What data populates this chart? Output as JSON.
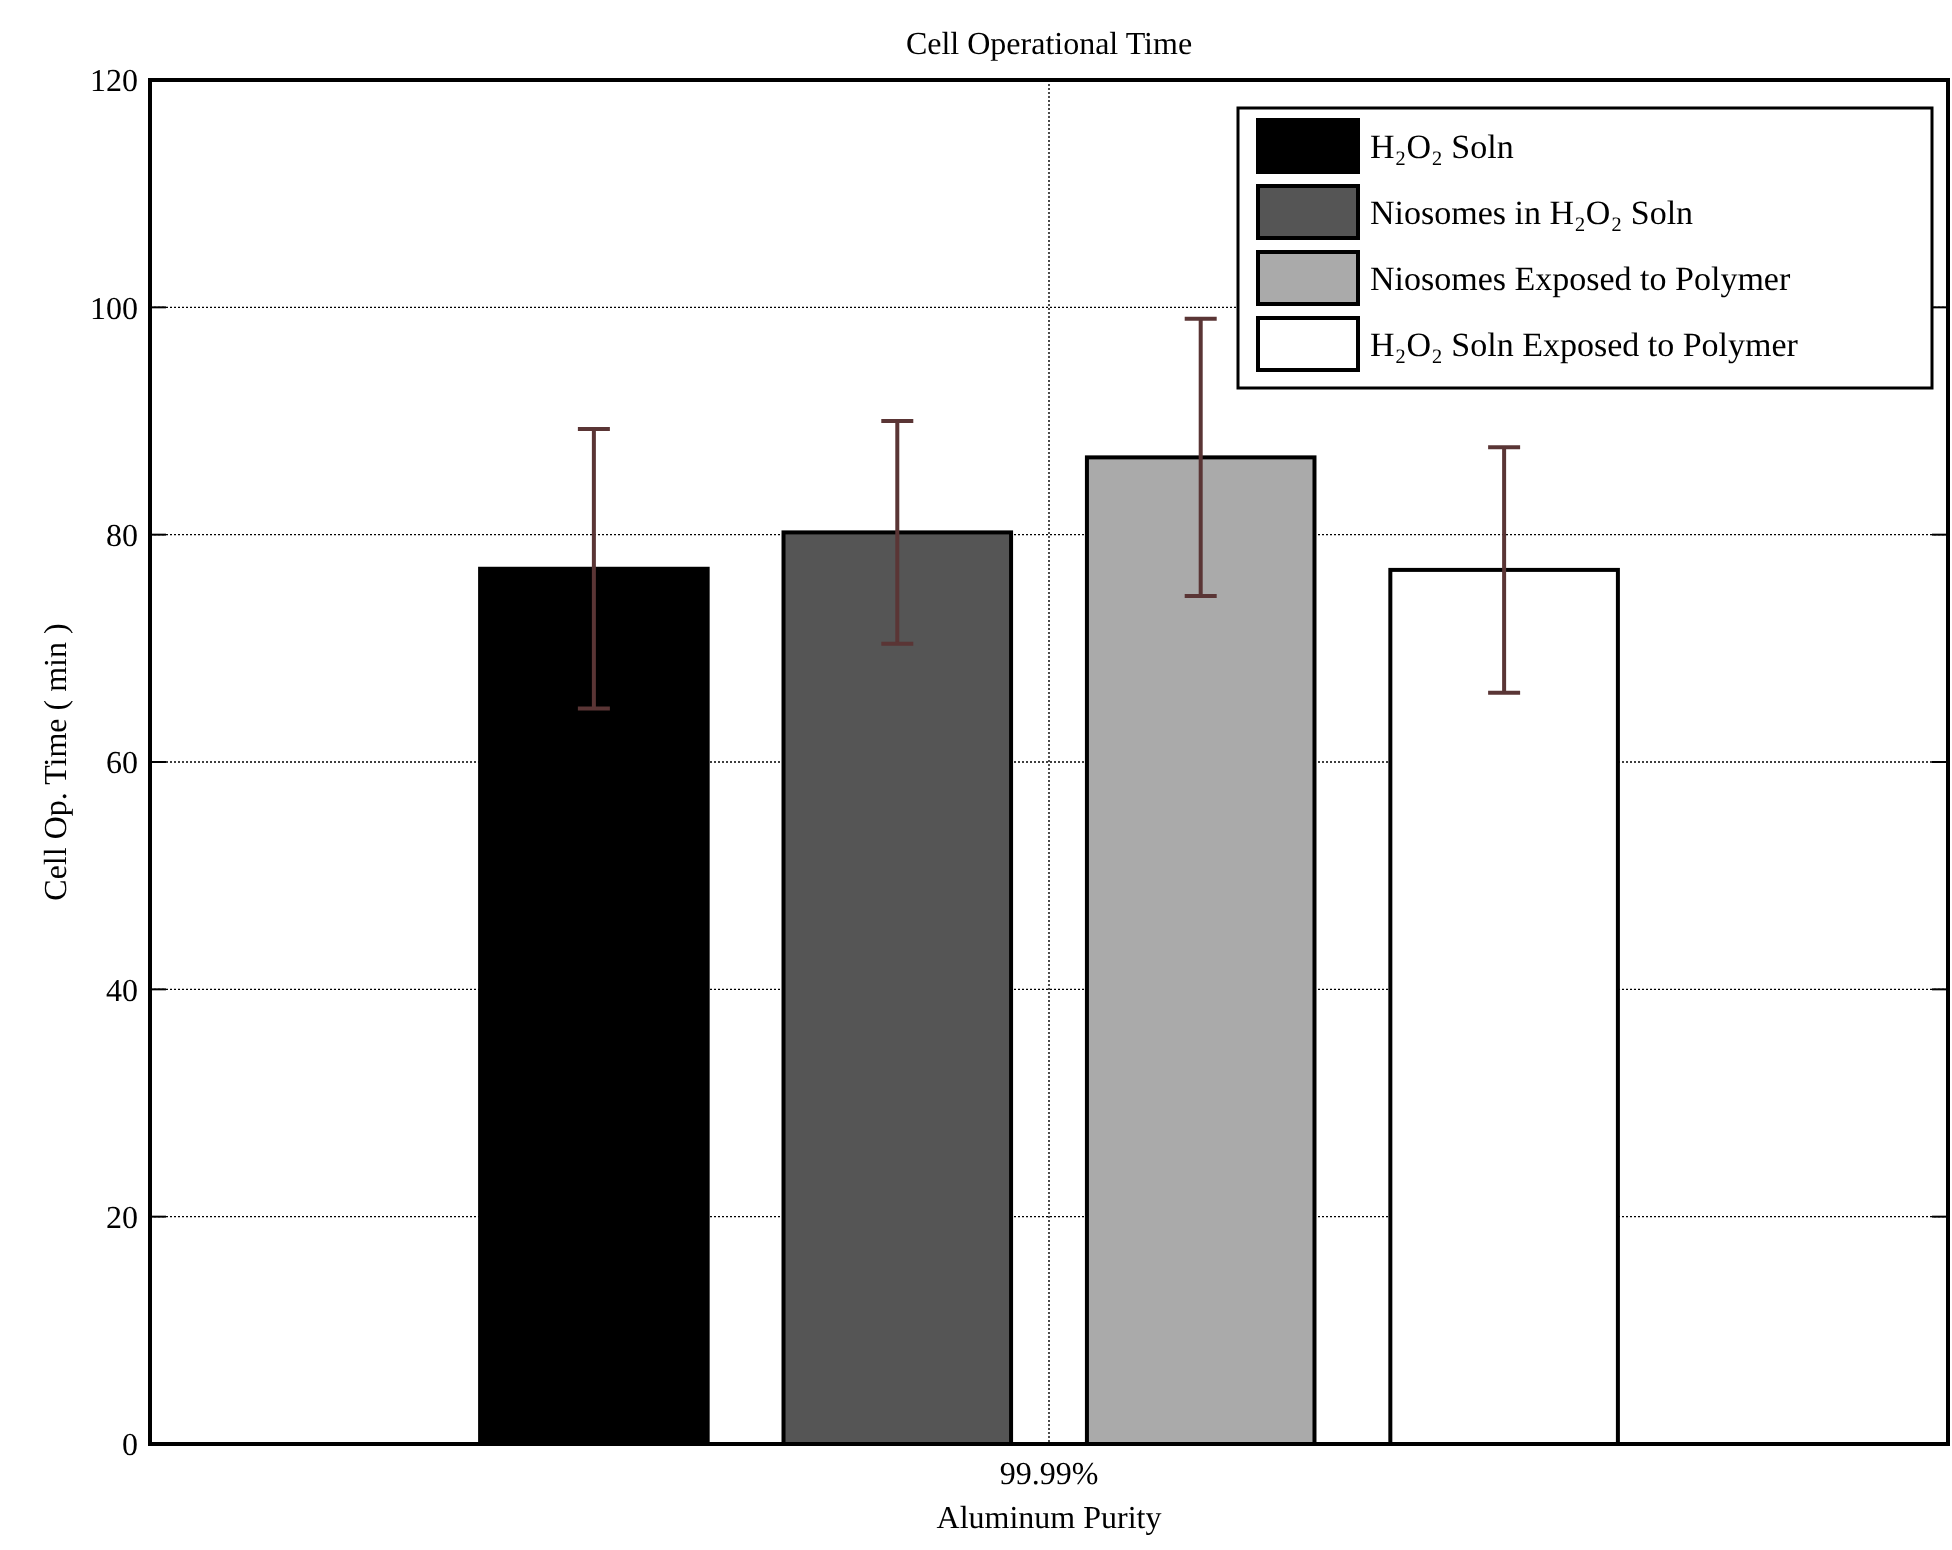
{
  "chart_data": {
    "type": "bar",
    "title": "Cell Operational Time",
    "xlabel": "Aluminum Purity",
    "ylabel": "Cell Op. Time ( min )",
    "categories": [
      "99.99%"
    ],
    "series": [
      {
        "name": "H₂O₂ Soln",
        "color": "#000000",
        "values": [
          77.0
        ],
        "errors": [
          12.3
        ]
      },
      {
        "name": "Niosomes in H₂O₂ Soln",
        "color": "#555555",
        "values": [
          80.2
        ],
        "errors": [
          9.8
        ]
      },
      {
        "name": "Niosomes Exposed to Polymer",
        "color": "#aaaaaa",
        "values": [
          86.8
        ],
        "errors": [
          12.2
        ]
      },
      {
        "name": "H₂O₂ Soln Exposed to Polymer",
        "color": "#ffffff",
        "values": [
          76.9
        ],
        "errors": [
          10.8
        ]
      }
    ],
    "ylim": [
      0,
      120
    ],
    "yticks": [
      0,
      20,
      40,
      60,
      80,
      100,
      120
    ],
    "grid": true,
    "legend": "top right"
  }
}
